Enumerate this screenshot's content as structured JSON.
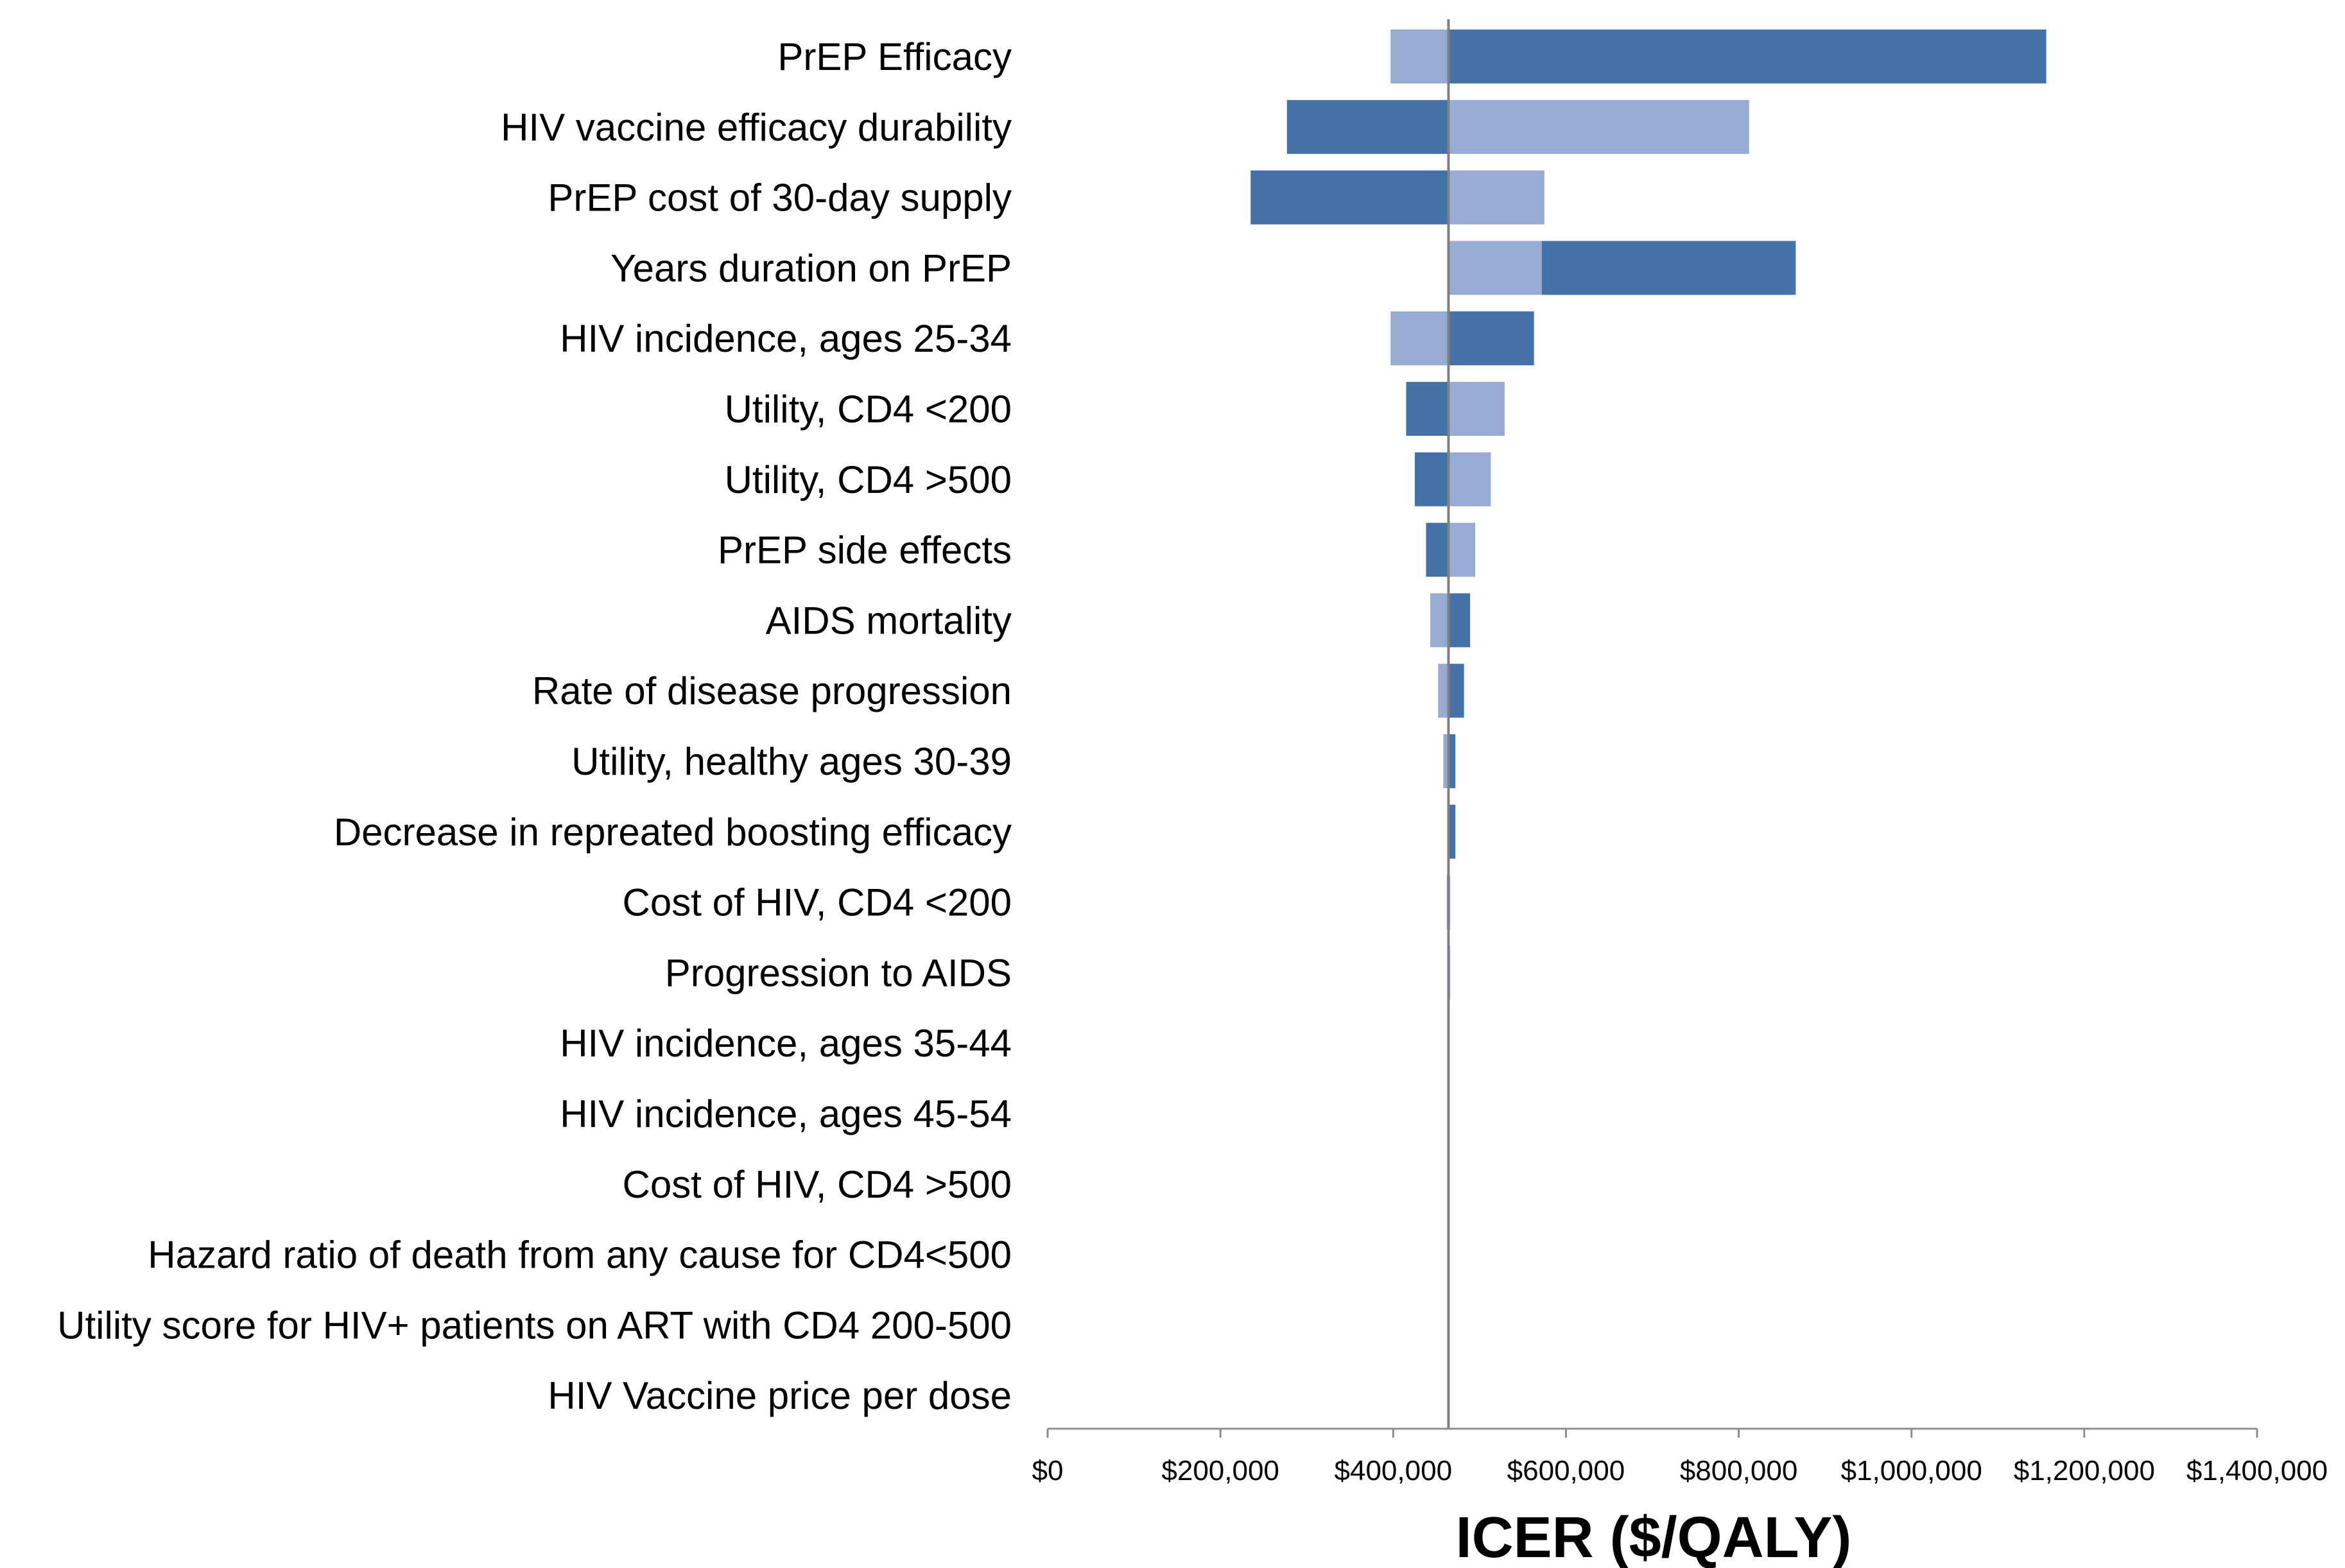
{
  "chart_data": {
    "type": "bar",
    "orientation": "horizontal",
    "subtype": "tornado",
    "title": "",
    "xlabel": "ICER ($/QALY)",
    "ylabel": "",
    "xlim": [
      0,
      1400000
    ],
    "tick_values": [
      0,
      200000,
      400000,
      600000,
      800000,
      1000000,
      1200000,
      1400000
    ],
    "tick_labels": [
      "$0",
      "$200,000",
      "$400,000",
      "$600,000",
      "$800,000",
      "$1,000,000",
      "$1,200,000",
      "$1,400,000"
    ],
    "baseline": 464000,
    "grid": false,
    "legend": "none",
    "colors": {
      "light": "#97abd3",
      "dark": "#4472a8",
      "baseline": "#7f7f7f",
      "axis": "#8c8c8c"
    },
    "categories": [
      "PrEP Efficacy",
      "HIV vaccine efficacy durability",
      "PrEP cost of 30-day supply",
      "Years duration on PrEP",
      "HIV incidence, ages 25-34",
      "Utility, CD4 <200",
      "Utility, CD4 >500",
      "PrEP side effects",
      "AIDS mortality",
      "Rate of disease progression",
      "Utility, healthy ages 30-39",
      "Decrease in repreated boosting efficacy",
      "Cost of HIV, CD4 <200",
      "Progression to AIDS",
      "HIV incidence, ages 35-44",
      "HIV incidence, ages 45-54",
      "Cost of HIV, CD4 >500",
      "Hazard ratio of death from any cause for CD4<500",
      "Utility score for HIV+ patients on ART with CD4 200-500",
      "HIV Vaccine price per dose"
    ],
    "series": [
      {
        "shade": "light",
        "values": [
          [
            397000,
            464000
          ],
          [
            464000,
            812000
          ],
          [
            464000,
            575000
          ],
          [
            464000,
            572000
          ],
          [
            397000,
            464000
          ],
          [
            464000,
            529000
          ],
          [
            464000,
            513000
          ],
          [
            464000,
            495000
          ],
          [
            443000,
            464000
          ],
          [
            452000,
            464000
          ],
          [
            458000,
            464000
          ],
          [
            464000,
            466000
          ],
          [
            462000,
            466000
          ],
          [
            463000,
            466000
          ],
          [
            464000,
            465000
          ],
          [
            464000,
            464000
          ],
          [
            464000,
            464000
          ],
          [
            464000,
            464000
          ],
          [
            464000,
            464000
          ],
          [
            464000,
            464000
          ]
        ]
      },
      {
        "shade": "dark",
        "values": [
          [
            464000,
            1156000
          ],
          [
            277000,
            464000
          ],
          [
            235000,
            464000
          ],
          [
            572000,
            866000
          ],
          [
            464000,
            563000
          ],
          [
            415000,
            464000
          ],
          [
            425000,
            464000
          ],
          [
            438000,
            464000
          ],
          [
            464000,
            489000
          ],
          [
            464000,
            482000
          ],
          [
            464000,
            472000
          ],
          [
            464000,
            472000
          ],
          [
            464000,
            465000
          ],
          [
            464000,
            465000
          ],
          [
            464000,
            464000
          ],
          [
            464000,
            464000
          ],
          [
            464000,
            464000
          ],
          [
            464000,
            464000
          ],
          [
            464000,
            464000
          ],
          [
            464000,
            464000
          ]
        ]
      }
    ]
  }
}
